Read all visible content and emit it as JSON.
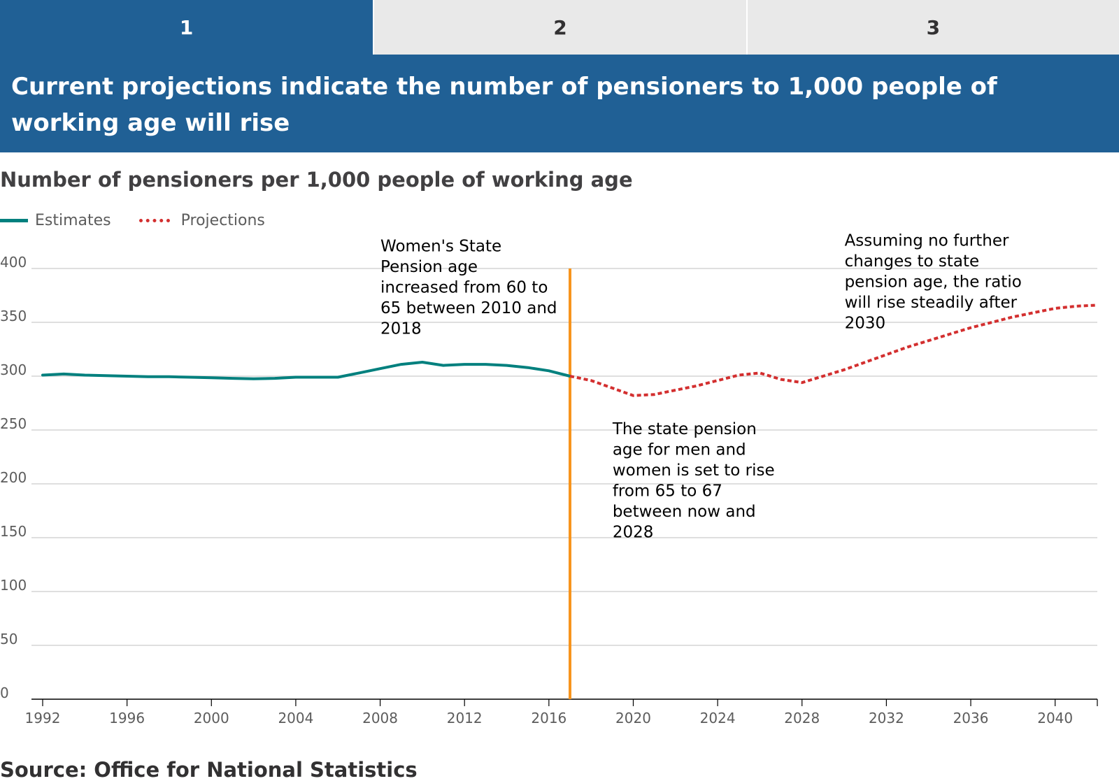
{
  "tabs": [
    {
      "label": "1",
      "active": true
    },
    {
      "label": "2",
      "active": false
    },
    {
      "label": "3",
      "active": false
    }
  ],
  "banner": {
    "title": "Current projections indicate the number of pensioners to 1,000 people of working age will rise"
  },
  "source": "Source: Office for National Statistics",
  "colors": {
    "brand": "#206095",
    "estimates": "#00807e",
    "projections": "#d32f2f",
    "reference_line": "#f7941d",
    "gridline": "#cccccc"
  },
  "chart_data": {
    "type": "line",
    "title": "Number of pensioners per 1,000 people of working age",
    "xlabel": "",
    "ylabel": "",
    "xlim": [
      1992,
      2042
    ],
    "ylim": [
      0,
      400
    ],
    "x_ticks": [
      1992,
      1996,
      2000,
      2004,
      2008,
      2012,
      2016,
      2020,
      2024,
      2028,
      2032,
      2036,
      2040
    ],
    "y_ticks": [
      0,
      50,
      100,
      150,
      200,
      250,
      300,
      350,
      400
    ],
    "grid": true,
    "legend_position": "top-left",
    "series": [
      {
        "name": "Estimates",
        "style": "solid",
        "x": [
          1992,
          1993,
          1994,
          1995,
          1996,
          1997,
          1998,
          1999,
          2000,
          2001,
          2002,
          2003,
          2004,
          2005,
          2006,
          2007,
          2008,
          2009,
          2010,
          2011,
          2012,
          2013,
          2014,
          2015,
          2016,
          2017
        ],
        "y": [
          301,
          302,
          301,
          300.5,
          300,
          299.5,
          299.5,
          299,
          298.5,
          298,
          297.5,
          298,
          299,
          299,
          299,
          303,
          307,
          311,
          313,
          310,
          311,
          311,
          310,
          308,
          305,
          300
        ]
      },
      {
        "name": "Projections",
        "style": "dotted",
        "x": [
          2017,
          2018,
          2019,
          2020,
          2021,
          2022,
          2023,
          2024,
          2025,
          2026,
          2027,
          2028,
          2029,
          2030,
          2031,
          2032,
          2033,
          2034,
          2035,
          2036,
          2037,
          2038,
          2039,
          2040,
          2041,
          2042
        ],
        "y": [
          300,
          296,
          289,
          282,
          283,
          287,
          291,
          296,
          301,
          303,
          297,
          294,
          300,
          306,
          313,
          320,
          327,
          333,
          339,
          345,
          350,
          355,
          359,
          363,
          365,
          366
        ]
      }
    ],
    "reference_line": {
      "x": 2017
    },
    "annotations": [
      {
        "x": 2008,
        "y": 416,
        "lines": [
          "Women's State",
          "Pension age",
          "increased from 60 to",
          "65 between 2010 and",
          "2018"
        ]
      },
      {
        "x": 2019,
        "y": 246,
        "lines": [
          "The state pension",
          "age for men and",
          "women is set to rise",
          "from 65 to 67",
          "between now and",
          "2028"
        ]
      },
      {
        "x": 2030,
        "y": 421,
        "lines": [
          "Assuming no further",
          "changes to state",
          "pension age, the ratio",
          "will rise steadily after",
          "2030"
        ]
      }
    ]
  }
}
